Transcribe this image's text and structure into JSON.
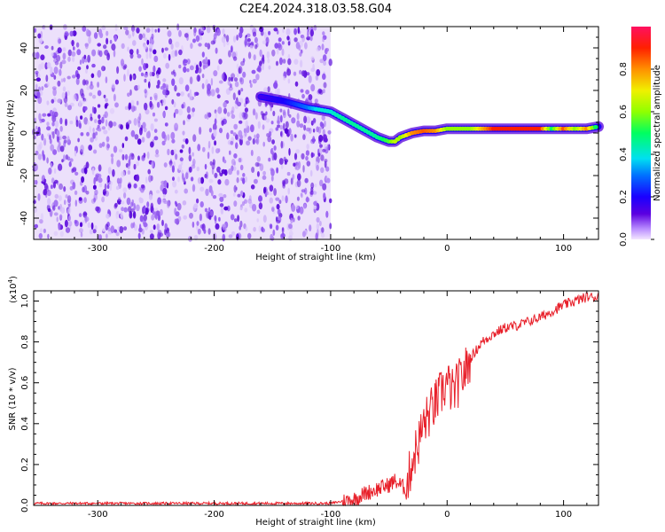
{
  "title": "C2E4.2024.318.03.58.G04",
  "chart_data": [
    {
      "type": "heatmap",
      "xlabel": "Height of straight line (km)",
      "ylabel": "Frequency (Hz)",
      "xlim": [
        -355,
        130
      ],
      "ylim": [
        -50,
        50
      ],
      "xticks": [
        -300,
        -200,
        -100,
        0,
        100
      ],
      "yticks": [
        -40,
        -20,
        0,
        20,
        40
      ],
      "colorbar": {
        "label": "Normalized spectral amplitude",
        "range": [
          0.0,
          1.0
        ],
        "ticks": [
          0.0,
          0.2,
          0.4,
          0.6,
          0.8
        ],
        "tick_labels": [
          "0.0",
          "0.2",
          "0.4",
          "0.6",
          "0.8"
        ]
      },
      "noise_region_x": [
        -355,
        -100
      ],
      "ridge": {
        "x": [
          -160,
          -140,
          -120,
          -110,
          -100,
          -90,
          -80,
          -70,
          -60,
          -50,
          -45,
          -40,
          -30,
          -20,
          -10,
          0,
          20,
          40,
          60,
          80,
          90,
          100,
          110,
          120,
          130
        ],
        "y": [
          17,
          15,
          12,
          11,
          10,
          7,
          4,
          1,
          -2,
          -4,
          -4,
          -2,
          0,
          1,
          1,
          2,
          2,
          2,
          2,
          2,
          2,
          2,
          2,
          2,
          3
        ],
        "amplitude": [
          0.15,
          0.2,
          0.3,
          0.4,
          0.4,
          0.45,
          0.45,
          0.45,
          0.45,
          0.55,
          0.65,
          0.6,
          0.8,
          0.85,
          0.8,
          0.6,
          0.6,
          0.9,
          0.9,
          0.9,
          0.5,
          0.85,
          0.6,
          0.8,
          0.4
        ]
      }
    },
    {
      "type": "line",
      "xlabel": "Height of straight line (km)",
      "ylabel": "SNR (10 * v/v)",
      "multiplier": "(x10",
      "multiplier_exp": "4",
      "multiplier_close": ")",
      "xlim": [
        -355,
        130
      ],
      "ylim": [
        0.0,
        1.05
      ],
      "xticks": [
        -300,
        -200,
        -100,
        0,
        100
      ],
      "yticks": [
        0.0,
        0.2,
        0.4,
        0.6,
        0.8,
        1.0
      ],
      "ytick_labels": [
        "0.0",
        "0.2",
        "0.4",
        "0.6",
        "0.8",
        "1.0"
      ],
      "series": [
        {
          "color": "#e8202a",
          "x": [
            -355,
            -300,
            -250,
            -200,
            -150,
            -120,
            -100,
            -90,
            -80,
            -70,
            -60,
            -50,
            -45,
            -40,
            -35,
            -30,
            -25,
            -20,
            -15,
            -10,
            -5,
            0,
            5,
            10,
            15,
            20,
            25,
            30,
            40,
            50,
            60,
            70,
            80,
            90,
            100,
            110,
            120,
            130
          ],
          "y": [
            0.01,
            0.01,
            0.01,
            0.01,
            0.01,
            0.01,
            0.01,
            0.02,
            0.03,
            0.06,
            0.08,
            0.1,
            0.12,
            0.1,
            0.08,
            0.22,
            0.3,
            0.4,
            0.45,
            0.5,
            0.55,
            0.6,
            0.55,
            0.6,
            0.65,
            0.72,
            0.76,
            0.8,
            0.84,
            0.87,
            0.88,
            0.9,
            0.92,
            0.95,
            0.98,
            1.0,
            1.02,
            1.02
          ]
        }
      ]
    }
  ]
}
